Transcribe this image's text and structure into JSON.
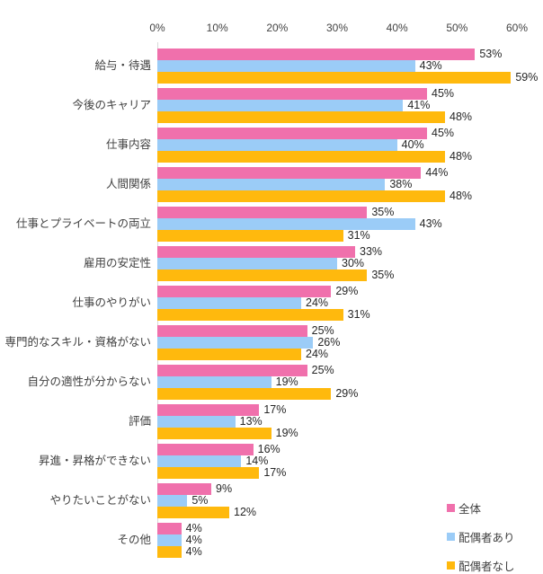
{
  "chart_data": {
    "type": "bar",
    "orientation": "horizontal",
    "title": "",
    "xlabel": "",
    "ylabel": "",
    "value_suffix": "%",
    "axis": {
      "position": "top",
      "min": 0,
      "max": 60,
      "tick_step": 10,
      "tick_labels": [
        "0%",
        "10%",
        "20%",
        "30%",
        "40%",
        "50%",
        "60%"
      ]
    },
    "grid": false,
    "legend_position": "bottom-right",
    "categories": [
      "給与・待遇",
      "今後のキャリア",
      "仕事内容",
      "人間関係",
      "仕事とプライベートの両立",
      "雇用の安定性",
      "仕事のやりがい",
      "専門的なスキル・資格がない",
      "自分の適性が分からない",
      "評価",
      "昇進・昇格ができない",
      "やりたいことがない",
      "その他"
    ],
    "series": [
      {
        "name": "全体",
        "color": "#F070AC",
        "values": [
          53,
          45,
          45,
          44,
          35,
          33,
          29,
          25,
          25,
          17,
          16,
          9,
          4
        ]
      },
      {
        "name": "配偶者あり",
        "color": "#9BCCF7",
        "values": [
          43,
          41,
          40,
          38,
          43,
          30,
          24,
          26,
          19,
          13,
          14,
          5,
          4
        ]
      },
      {
        "name": "配偶者なし",
        "color": "#FFB90D",
        "values": [
          59,
          48,
          48,
          48,
          31,
          35,
          31,
          24,
          29,
          19,
          17,
          12,
          4
        ]
      }
    ]
  },
  "colors": {
    "baseline": "#d9d9d9",
    "axis_text": "#444444",
    "category_text": "#404040",
    "value_text": "#262626",
    "background": "#ffffff"
  }
}
